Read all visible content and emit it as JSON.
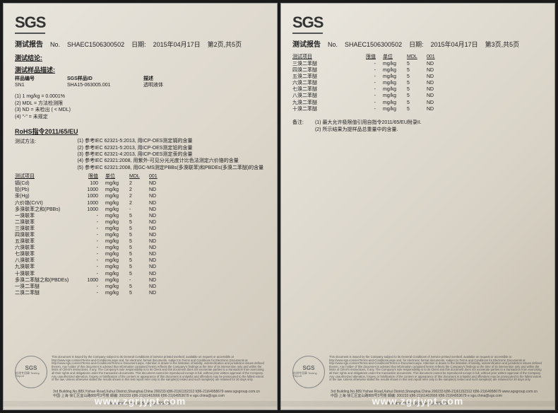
{
  "logo": "SGS",
  "report_label": "测试报告",
  "report_no_label": "No.",
  "report_no": "SHAEC1506300502",
  "date_label": "日期:",
  "date": "2015年04月17日",
  "page1_info": "第2页,共5页",
  "page2_info": "第3页,共5页",
  "sec_conclusion": "测试结论:",
  "sec_sample_desc": "测试样品描述:",
  "sample_id_label": "样品编号",
  "sgs_id_label": "SGS样品ID",
  "desc_label": "描述",
  "sample_id": "SN1",
  "sgs_id": "SHA15-063005.001",
  "desc": "透明液体",
  "footnotes": [
    "(1) 1 mg/kg = 0.0001%",
    "(2) MDL = 方法检测限",
    "(3) ND = 未检出 ( < MDL)",
    "(4) \"-\" = 未规定"
  ],
  "rohs_title": "RoHS指令2011/65/EU",
  "method_label": "测试方法:",
  "methods": [
    "(1) 参考IEC 62321-5:2013, 用ICP-OES测定镉的含量",
    "(2) 参考IEC 62321-5:2013, 用ICP-OES测定铅的含量",
    "(3) 参考IEC 62321-4:2013, 用ICP-OES测定汞的含量",
    "(4) 参考IEC 62321:2008, 用紫外-可见分光光度计比色法测定六价铬的含量",
    "(5) 参考IEC 62321:2008, 用GC-MS测定PBBs(多溴联苯)和PBDEs(多溴二苯醚)的含量"
  ],
  "col_item": "测试项目",
  "col_limit": "限值",
  "col_unit": "单位",
  "col_mdl": "MDL",
  "col_res": "001",
  "rows1": [
    {
      "n": "镉(Cd)",
      "l": "100",
      "u": "mg/kg",
      "m": "2",
      "r": "ND"
    },
    {
      "n": "铅(Pb)",
      "l": "1000",
      "u": "mg/kg",
      "m": "2",
      "r": "ND"
    },
    {
      "n": "汞(Hg)",
      "l": "1000",
      "u": "mg/kg",
      "m": "2",
      "r": "ND"
    },
    {
      "n": "六价铬(CrVI)",
      "l": "1000",
      "u": "mg/kg",
      "m": "2",
      "r": "ND"
    },
    {
      "n": "多溴联苯之和(PBBs)",
      "l": "1000",
      "u": "mg/kg",
      "m": "-",
      "r": "ND"
    },
    {
      "n": "一溴联苯",
      "l": "-",
      "u": "mg/kg",
      "m": "5",
      "r": "ND"
    },
    {
      "n": "二溴联苯",
      "l": "-",
      "u": "mg/kg",
      "m": "5",
      "r": "ND"
    },
    {
      "n": "三溴联苯",
      "l": "-",
      "u": "mg/kg",
      "m": "5",
      "r": "ND"
    },
    {
      "n": "四溴联苯",
      "l": "-",
      "u": "mg/kg",
      "m": "5",
      "r": "ND"
    },
    {
      "n": "五溴联苯",
      "l": "-",
      "u": "mg/kg",
      "m": "5",
      "r": "ND"
    },
    {
      "n": "六溴联苯",
      "l": "-",
      "u": "mg/kg",
      "m": "5",
      "r": "ND"
    },
    {
      "n": "七溴联苯",
      "l": "-",
      "u": "mg/kg",
      "m": "5",
      "r": "ND"
    },
    {
      "n": "八溴联苯",
      "l": "-",
      "u": "mg/kg",
      "m": "5",
      "r": "ND"
    },
    {
      "n": "九溴联苯",
      "l": "-",
      "u": "mg/kg",
      "m": "5",
      "r": "ND"
    },
    {
      "n": "十溴联苯",
      "l": "-",
      "u": "mg/kg",
      "m": "5",
      "r": "ND"
    },
    {
      "n": "多溴二苯醚之和(PBDEs)",
      "l": "1000",
      "u": "mg/kg",
      "m": "-",
      "r": "ND"
    },
    {
      "n": "一溴二苯醚",
      "l": "-",
      "u": "mg/kg",
      "m": "5",
      "r": "ND"
    },
    {
      "n": "二溴二苯醚",
      "l": "-",
      "u": "mg/kg",
      "m": "5",
      "r": "ND"
    }
  ],
  "rows2": [
    {
      "n": "三溴二苯醚",
      "l": "-",
      "u": "mg/kg",
      "m": "5",
      "r": "ND"
    },
    {
      "n": "四溴二苯醚",
      "l": "-",
      "u": "mg/kg",
      "m": "5",
      "r": "ND"
    },
    {
      "n": "五溴二苯醚",
      "l": "-",
      "u": "mg/kg",
      "m": "5",
      "r": "ND"
    },
    {
      "n": "六溴二苯醚",
      "l": "-",
      "u": "mg/kg",
      "m": "5",
      "r": "ND"
    },
    {
      "n": "七溴二苯醚",
      "l": "-",
      "u": "mg/kg",
      "m": "5",
      "r": "ND"
    },
    {
      "n": "八溴二苯醚",
      "l": "-",
      "u": "mg/kg",
      "m": "5",
      "r": "ND"
    },
    {
      "n": "九溴二苯醚",
      "l": "-",
      "u": "mg/kg",
      "m": "5",
      "r": "ND"
    },
    {
      "n": "十溴二苯醚",
      "l": "-",
      "u": "mg/kg",
      "m": "5",
      "r": "ND"
    }
  ],
  "remarks_label": "备注:",
  "remarks": [
    "(1) 最大允许极限值引用自指令2011/65/EU附录II.",
    "(2) 所示结果为提样品总重量中的含量."
  ],
  "disclaimer": "This document is issued by the Company subject to its General Conditions of Service printed overleaf, available on request or accessible at http://www.sgs.com/en/Terms-and-Conditions.aspx and, for electronic format documents, subject to Terms and Conditions for Electronic Documents at http://www.sgs.com/en/Terms-and-Conditions/Terms-e-Document.aspx. Attention is drawn to the limitation of liability, indemnification and jurisdiction issues defined therein. Any holder of this document is advised that information contained herein reflects the Company's findings at the time of its intervention only and within the limits of Client's instructions, if any. The Company's sole responsibility is to its Client and this document does not exonerate parties to a transaction from exercising all their rights and obligations under the transaction documents. This document cannot be reproduced except in full, without prior written approval of the Company. Any unauthorized alteration, forgery or falsification of the content or appearance of this document is unlawful and offenders may be prosecuted to the fullest extent of the law. Unless otherwise stated the results shown in this test report refer only to the sample(s) tested and such sample(s) are retained for 30 days only.",
  "addr1": "3rd Building,No.889,Yishan Road,Xuhui District,Shanghai,China   200233   t(86-21)61152312  f(86-21)64958679   www.sgsgroup.com.cn",
  "addr2": "中国·上海·徐汇区宜山路889号3号楼   邮编: 200233   t(86-21)61402666  f(86-21)64953679   e sgs.china@sgs.com",
  "member": "Member of the SGS Group (SGS S",
  "stamp_sub": "检测专用章\nTesting Report",
  "watermark": "www.zgrjypt.com"
}
